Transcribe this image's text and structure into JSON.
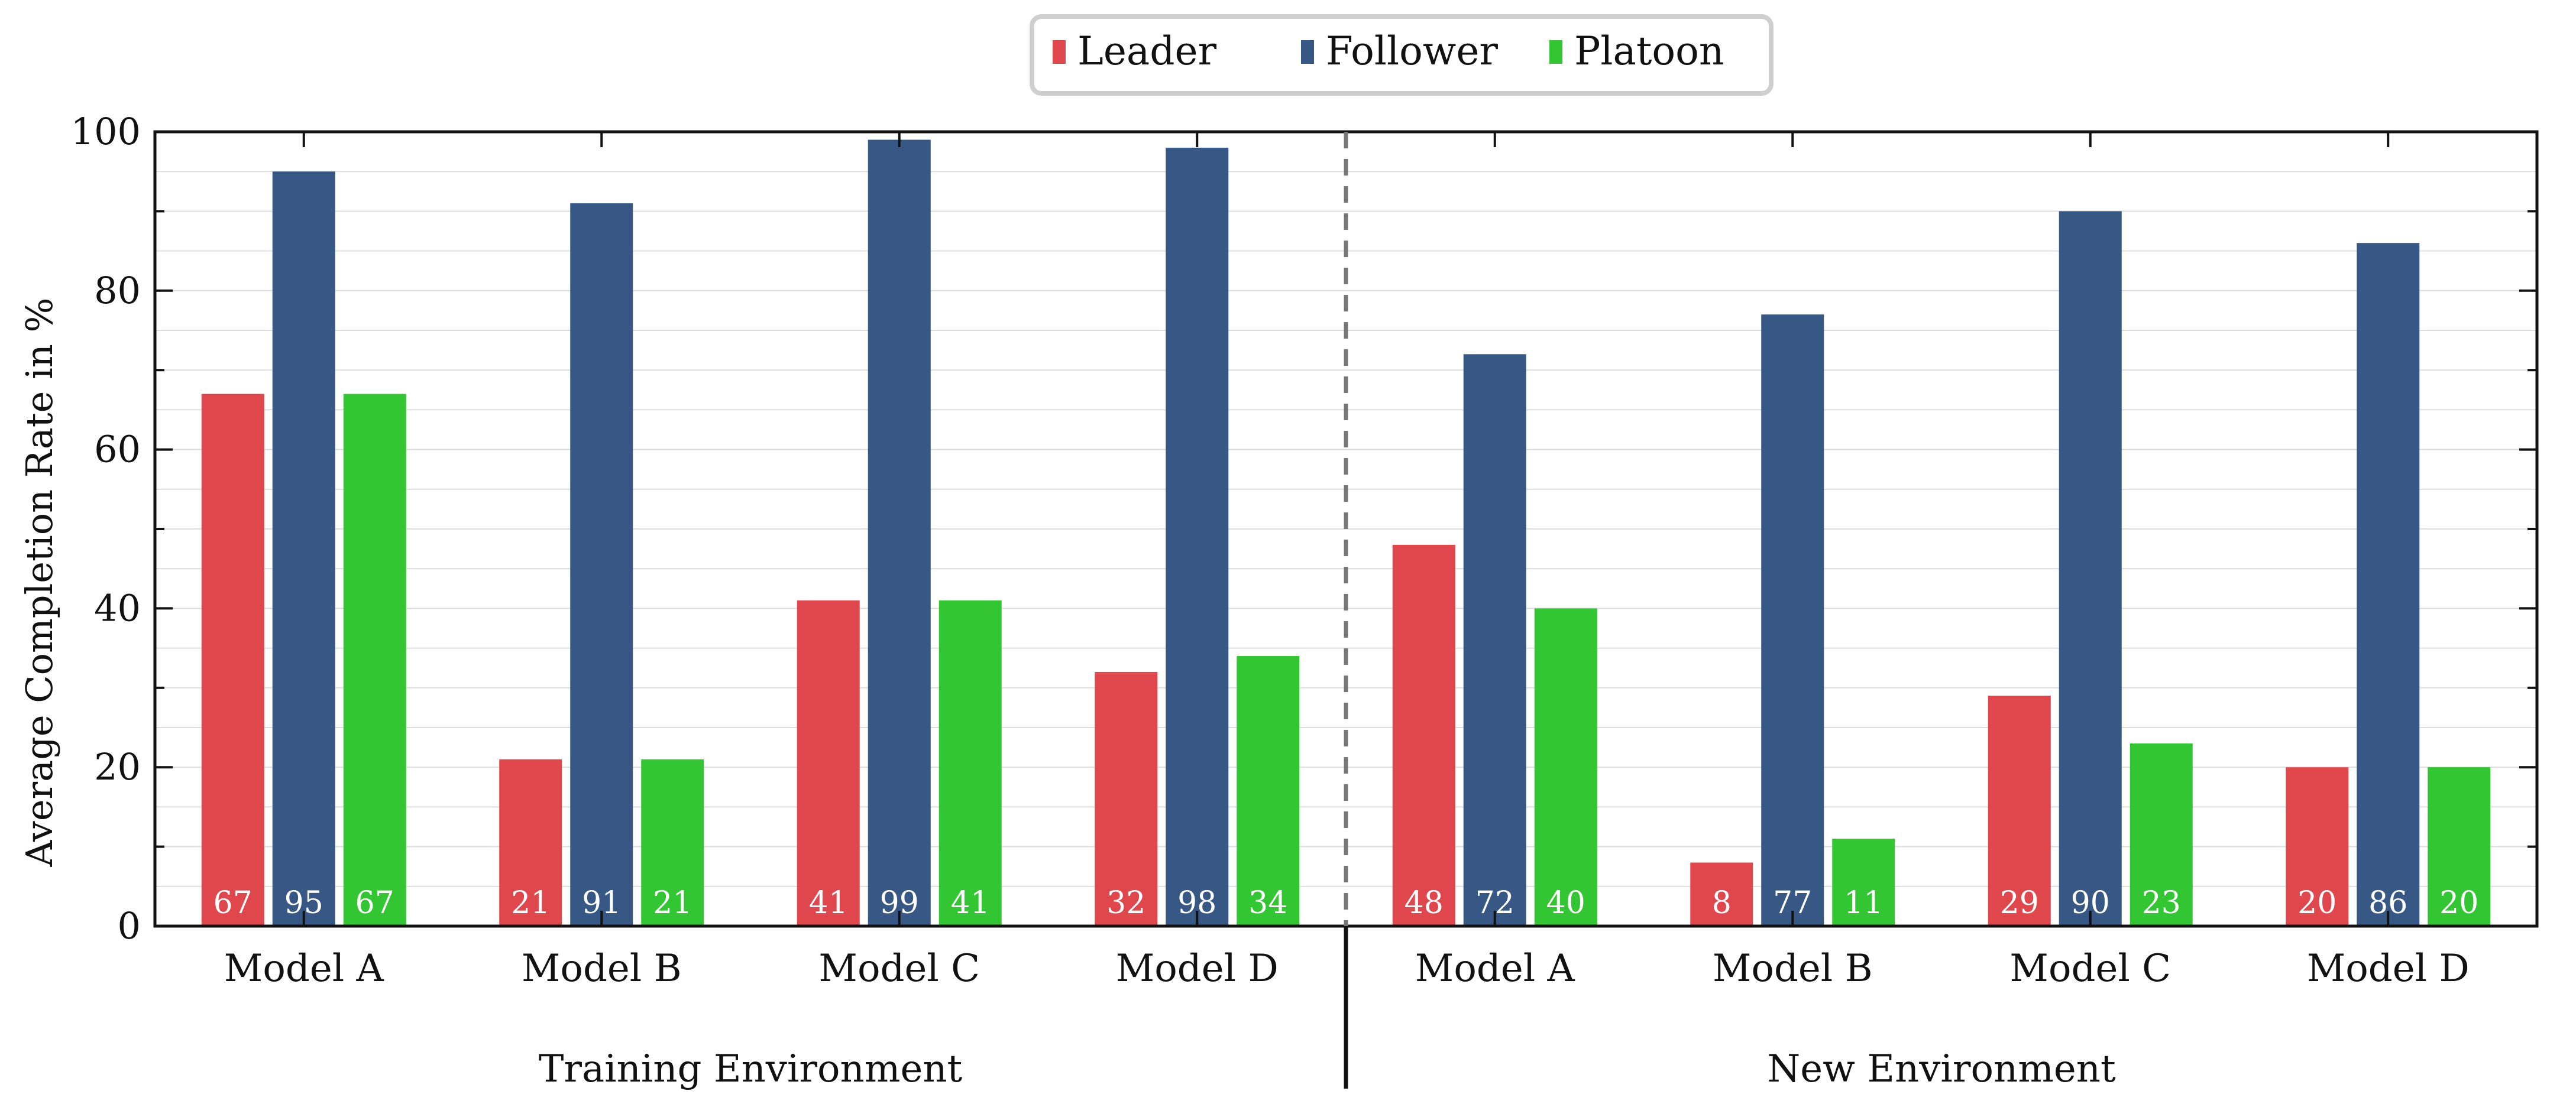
{
  "chart_data": {
    "type": "bar",
    "title": "",
    "xlabel": "",
    "ylabel": "Average Completion Rate in %",
    "ylim": [
      0,
      100
    ],
    "yticks": [
      0,
      20,
      40,
      60,
      80,
      100
    ],
    "grid": true,
    "legend_position": "top-center",
    "groups": [
      {
        "label": "Training Environment",
        "categories": [
          "Model A",
          "Model B",
          "Model C",
          "Model D"
        ]
      },
      {
        "label": "New Environment",
        "categories": [
          "Model A",
          "Model B",
          "Model C",
          "Model D"
        ]
      }
    ],
    "categories": [
      "Model A",
      "Model B",
      "Model C",
      "Model D",
      "Model A",
      "Model B",
      "Model C",
      "Model D"
    ],
    "series": [
      {
        "name": "Leader",
        "color": "#e0474c",
        "values": [
          67,
          21,
          41,
          32,
          48,
          8,
          29,
          20
        ]
      },
      {
        "name": "Follower",
        "color": "#375785",
        "values": [
          95,
          91,
          99,
          98,
          72,
          77,
          90,
          86
        ]
      },
      {
        "name": "Platoon",
        "color": "#33c633",
        "values": [
          67,
          21,
          41,
          34,
          40,
          11,
          23,
          20
        ]
      }
    ]
  }
}
